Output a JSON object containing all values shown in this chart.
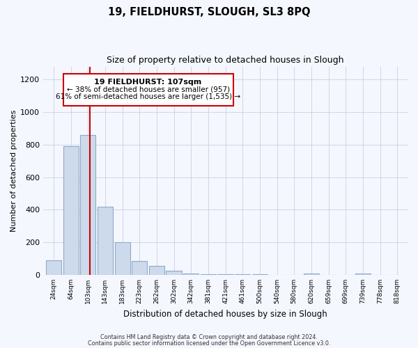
{
  "title": "19, FIELDHURST, SLOUGH, SL3 8PQ",
  "subtitle": "Size of property relative to detached houses in Slough",
  "xlabel": "Distribution of detached houses by size in Slough",
  "ylabel": "Number of detached properties",
  "footnote1": "Contains HM Land Registry data © Crown copyright and database right 2024.",
  "footnote2": "Contains public sector information licensed under the Open Government Licence v3.0.",
  "property_label": "19 FIELDHURST: 107sqm",
  "annotation_line1": "← 38% of detached houses are smaller (957)",
  "annotation_line2": "61% of semi-detached houses are larger (1,535) →",
  "bar_color": "#ccdaeb",
  "bar_edge_color": "#90aac8",
  "redline_color": "#cc0000",
  "box_edge_color": "#cc0000",
  "bins": [
    "24sqm",
    "64sqm",
    "103sqm",
    "143sqm",
    "183sqm",
    "223sqm",
    "262sqm",
    "302sqm",
    "342sqm",
    "381sqm",
    "421sqm",
    "461sqm",
    "500sqm",
    "540sqm",
    "580sqm",
    "620sqm",
    "659sqm",
    "699sqm",
    "739sqm",
    "778sqm",
    "818sqm"
  ],
  "values": [
    90,
    790,
    860,
    420,
    200,
    85,
    55,
    25,
    10,
    5,
    2,
    2,
    2,
    0,
    0,
    10,
    0,
    0,
    10,
    0,
    0
  ],
  "ylim": [
    0,
    1280
  ],
  "yticks": [
    0,
    200,
    400,
    600,
    800,
    1000,
    1200
  ],
  "red_line_bin_index": 2,
  "background_color": "#f5f7ff",
  "grid_color": "#ccd5e8"
}
